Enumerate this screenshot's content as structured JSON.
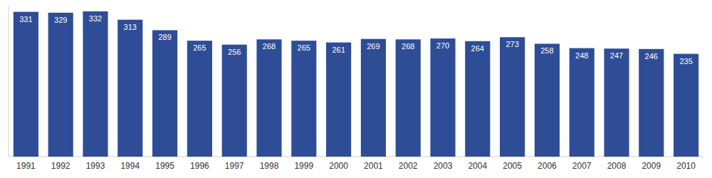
{
  "chart_data": {
    "type": "bar",
    "categories": [
      "1991",
      "1992",
      "1993",
      "1994",
      "1995",
      "1996",
      "1997",
      "1998",
      "1999",
      "2000",
      "2001",
      "2002",
      "2003",
      "2004",
      "2005",
      "2006",
      "2007",
      "2008",
      "2009",
      "2010"
    ],
    "values": [
      331,
      329,
      332,
      313,
      289,
      265,
      256,
      268,
      265,
      261,
      269,
      268,
      270,
      264,
      273,
      258,
      248,
      247,
      246,
      235
    ],
    "color": "#2e4d96",
    "ylim": [
      0,
      345
    ],
    "grid": false,
    "data_labels": true,
    "tick_labels": "x"
  }
}
